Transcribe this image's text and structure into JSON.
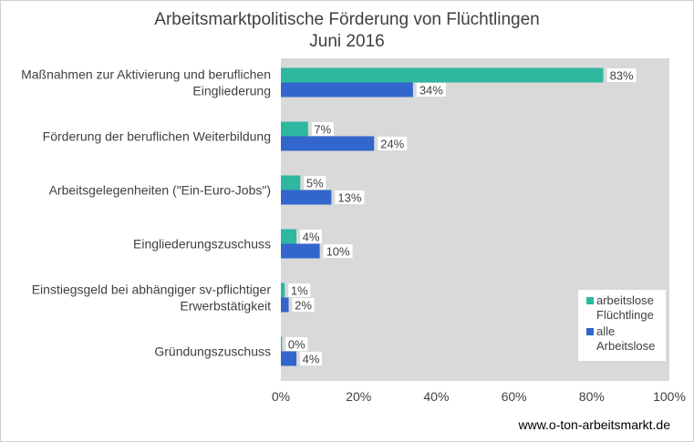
{
  "chart_data": {
    "type": "bar",
    "orientation": "horizontal",
    "title": [
      "Arbeitsmarktpolitische Förderung von Flüchtlingen",
      "Juni 2016"
    ],
    "categories": [
      [
        "Maßnahmen zur Aktivierung und beruflichen",
        "Eingliederung"
      ],
      [
        "Förderung der beruflichen Weiterbildung"
      ],
      [
        "Arbeitsgelegenheiten (\"Ein-Euro-Jobs\")"
      ],
      [
        "Eingliederungszuschuss"
      ],
      [
        "Einstiegsgeld bei abhängiger sv-pflichtiger",
        "Erwerbstätigkeit"
      ],
      [
        "Gründungszuschuss"
      ]
    ],
    "series": [
      {
        "name": [
          "arbeitslose",
          "Flüchtlinge"
        ],
        "color": "#2eb8a0",
        "values": [
          83,
          7,
          5,
          4,
          1,
          0.3
        ],
        "labels": [
          "83%",
          "7%",
          "5%",
          "4%",
          "1%",
          "0%"
        ]
      },
      {
        "name": [
          "alle",
          "Arbeitslose"
        ],
        "color": "#3366cc",
        "values": [
          34,
          24,
          13,
          10,
          2,
          4
        ],
        "labels": [
          "34%",
          "24%",
          "13%",
          "10%",
          "2%",
          "4%"
        ]
      }
    ],
    "xlim": [
      0,
      100
    ],
    "xticks": [
      "0%",
      "20%",
      "40%",
      "60%",
      "80%",
      "100%"
    ],
    "plot_background": "#d9d9d9",
    "grid": false,
    "legend_position": "bottom-right"
  },
  "source": "www.o-ton-arbeitsmarkt.de"
}
